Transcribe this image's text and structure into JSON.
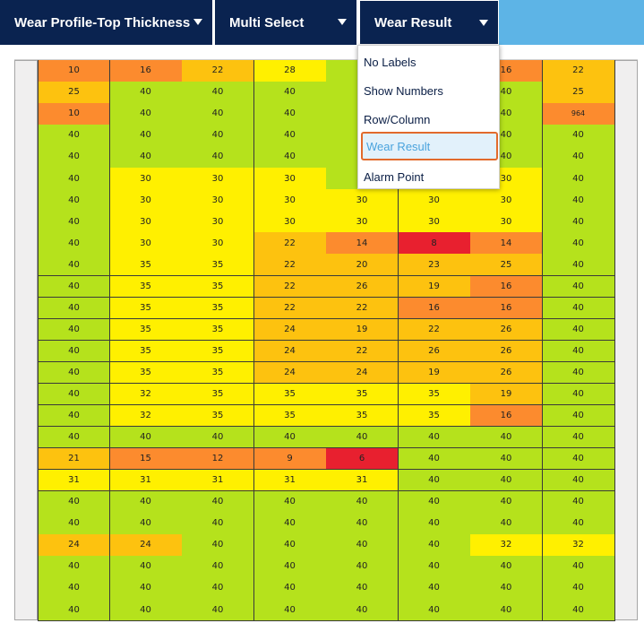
{
  "toolbar": {
    "dropdowns": [
      {
        "label": "Wear Profile-Top Thickness"
      },
      {
        "label": "Multi Select"
      },
      {
        "label": "Wear Result"
      }
    ]
  },
  "menu": {
    "items": [
      "No Labels",
      "Show Numbers",
      "Row/Column",
      "Wear Result",
      "Alarm Point"
    ],
    "selected": "Wear Result"
  },
  "colors": {
    "green": "#b5e21c",
    "yellow": "#fff000",
    "amber": "#fdc20f",
    "orange": "#fc8b2e",
    "red": "#e8202f",
    "header_navy": "#0a2350",
    "header_fill": "#5db4e6"
  },
  "grid": {
    "rows": [
      [
        "10",
        "16",
        "22",
        "28",
        "",
        "",
        "16",
        "22"
      ],
      [
        "25",
        "40",
        "40",
        "40",
        "",
        "",
        "40",
        "25"
      ],
      [
        "10",
        "40",
        "40",
        "40",
        "",
        "",
        "40",
        "964"
      ],
      [
        "40",
        "40",
        "40",
        "40",
        "",
        "",
        "40",
        "40"
      ],
      [
        "40",
        "40",
        "40",
        "40",
        "",
        "",
        "40",
        "40"
      ],
      [
        "40",
        "30",
        "30",
        "30",
        "",
        "",
        "30",
        "40"
      ],
      [
        "40",
        "30",
        "30",
        "30",
        "30",
        "30",
        "30",
        "40"
      ],
      [
        "40",
        "30",
        "30",
        "30",
        "30",
        "30",
        "30",
        "40"
      ],
      [
        "40",
        "30",
        "30",
        "22",
        "14",
        "8",
        "14",
        "40"
      ],
      [
        "40",
        "35",
        "35",
        "22",
        "20",
        "23",
        "25",
        "40"
      ],
      [
        "40",
        "35",
        "35",
        "22",
        "26",
        "19",
        "16",
        "40"
      ],
      [
        "40",
        "35",
        "35",
        "22",
        "22",
        "16",
        "16",
        "40"
      ],
      [
        "40",
        "35",
        "35",
        "24",
        "19",
        "22",
        "26",
        "40"
      ],
      [
        "40",
        "35",
        "35",
        "24",
        "22",
        "26",
        "26",
        "40"
      ],
      [
        "40",
        "35",
        "35",
        "24",
        "24",
        "19",
        "26",
        "40"
      ],
      [
        "40",
        "32",
        "35",
        "35",
        "35",
        "35",
        "19",
        "40"
      ],
      [
        "40",
        "32",
        "35",
        "35",
        "35",
        "35",
        "16",
        "40"
      ],
      [
        "40",
        "40",
        "40",
        "40",
        "40",
        "40",
        "40",
        "40"
      ],
      [
        "21",
        "15",
        "12",
        "9",
        "6",
        "40",
        "40",
        "40"
      ],
      [
        "31",
        "31",
        "31",
        "31",
        "31",
        "40",
        "40",
        "40"
      ],
      [
        "40",
        "40",
        "40",
        "40",
        "40",
        "40",
        "40",
        "40"
      ],
      [
        "40",
        "40",
        "40",
        "40",
        "40",
        "40",
        "40",
        "40"
      ],
      [
        "24",
        "24",
        "40",
        "40",
        "40",
        "40",
        "32",
        "32"
      ],
      [
        "40",
        "40",
        "40",
        "40",
        "40",
        "40",
        "40",
        "40"
      ],
      [
        "40",
        "40",
        "40",
        "40",
        "40",
        "40",
        "40",
        "40"
      ],
      [
        "40",
        "40",
        "40",
        "40",
        "40",
        "40",
        "40",
        "40"
      ]
    ],
    "colors": [
      [
        "orange",
        "orange",
        "amber",
        "yellow",
        "green",
        "green",
        "orange",
        "amber"
      ],
      [
        "amber",
        "green",
        "green",
        "green",
        "green",
        "green",
        "green",
        "amber"
      ],
      [
        "orange",
        "green",
        "green",
        "green",
        "green",
        "green",
        "green",
        "orange"
      ],
      [
        "green",
        "green",
        "green",
        "green",
        "green",
        "green",
        "green",
        "green"
      ],
      [
        "green",
        "green",
        "green",
        "green",
        "green",
        "green",
        "green",
        "green"
      ],
      [
        "green",
        "yellow",
        "yellow",
        "yellow",
        "green",
        "green",
        "yellow",
        "green"
      ],
      [
        "green",
        "yellow",
        "yellow",
        "yellow",
        "yellow",
        "yellow",
        "yellow",
        "green"
      ],
      [
        "green",
        "yellow",
        "yellow",
        "yellow",
        "yellow",
        "yellow",
        "yellow",
        "green"
      ],
      [
        "green",
        "yellow",
        "yellow",
        "amber",
        "orange",
        "red",
        "orange",
        "green"
      ],
      [
        "green",
        "yellow",
        "yellow",
        "amber",
        "amber",
        "amber",
        "amber",
        "green"
      ],
      [
        "green",
        "yellow",
        "yellow",
        "amber",
        "amber",
        "amber",
        "orange",
        "green"
      ],
      [
        "green",
        "yellow",
        "yellow",
        "amber",
        "amber",
        "orange",
        "orange",
        "green"
      ],
      [
        "green",
        "yellow",
        "yellow",
        "amber",
        "amber",
        "amber",
        "amber",
        "green"
      ],
      [
        "green",
        "yellow",
        "yellow",
        "amber",
        "amber",
        "amber",
        "amber",
        "green"
      ],
      [
        "green",
        "yellow",
        "yellow",
        "amber",
        "amber",
        "amber",
        "amber",
        "green"
      ],
      [
        "green",
        "yellow",
        "yellow",
        "yellow",
        "yellow",
        "yellow",
        "amber",
        "green"
      ],
      [
        "green",
        "yellow",
        "yellow",
        "yellow",
        "yellow",
        "yellow",
        "orange",
        "green"
      ],
      [
        "green",
        "green",
        "green",
        "green",
        "green",
        "green",
        "green",
        "green"
      ],
      [
        "amber",
        "orange",
        "orange",
        "orange",
        "red",
        "green",
        "green",
        "green"
      ],
      [
        "yellow",
        "yellow",
        "yellow",
        "yellow",
        "yellow",
        "green",
        "green",
        "green"
      ],
      [
        "green",
        "green",
        "green",
        "green",
        "green",
        "green",
        "green",
        "green"
      ],
      [
        "green",
        "green",
        "green",
        "green",
        "green",
        "green",
        "green",
        "green"
      ],
      [
        "amber",
        "amber",
        "green",
        "green",
        "green",
        "green",
        "yellow",
        "yellow"
      ],
      [
        "green",
        "green",
        "green",
        "green",
        "green",
        "green",
        "green",
        "green"
      ],
      [
        "green",
        "green",
        "green",
        "green",
        "green",
        "green",
        "green",
        "green"
      ],
      [
        "green",
        "green",
        "green",
        "green",
        "green",
        "green",
        "green",
        "green"
      ]
    ]
  }
}
